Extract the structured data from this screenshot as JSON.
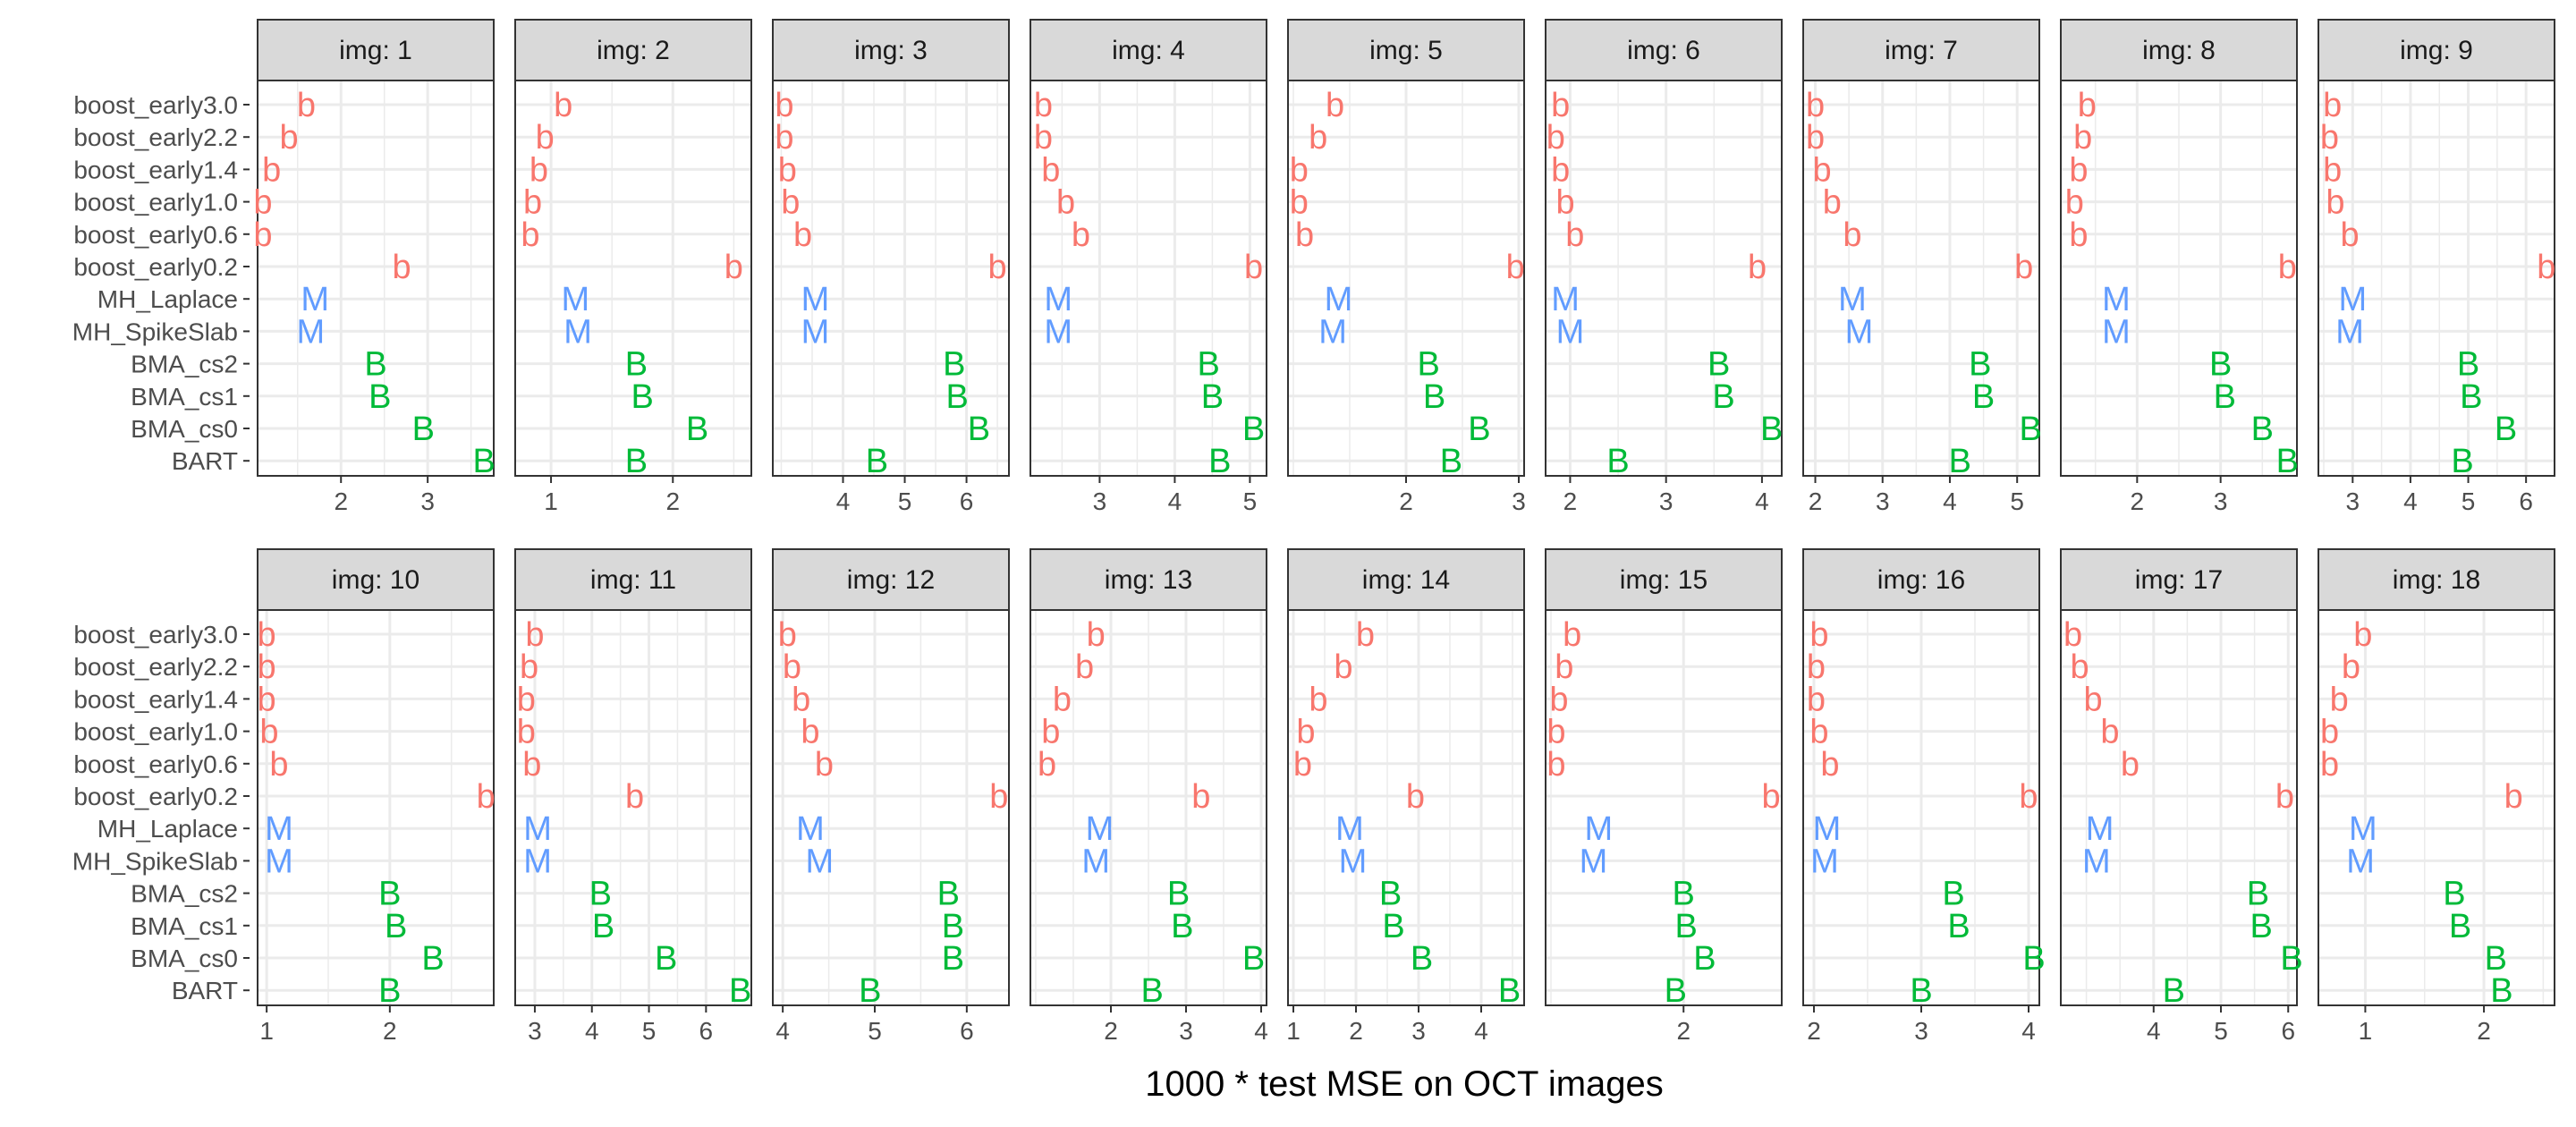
{
  "chart_data": {
    "type": "scatter",
    "layout": "facet_wrap 2 rows x 9 columns, free x scales",
    "xlabel": "1000 * test MSE on OCT images",
    "ylabel": "",
    "methods": [
      "boost_early3.0",
      "boost_early2.2",
      "boost_early1.4",
      "boost_early1.0",
      "boost_early0.6",
      "boost_early0.2",
      "MH_Laplace",
      "MH_SpikeSlab",
      "BMA_cs2",
      "BMA_cs1",
      "BMA_cs0",
      "BART"
    ],
    "method_symbols": [
      "b",
      "b",
      "b",
      "b",
      "b",
      "b",
      "M",
      "M",
      "B",
      "B",
      "B",
      "B"
    ],
    "symbol_colors": {
      "b": "#F8766D",
      "M": "#619CFF",
      "B": "#00BA38"
    },
    "panels": [
      {
        "label": "img: 1",
        "xlim": [
          1.1,
          3.7
        ],
        "ticks": [
          2,
          3
        ],
        "tick_labels": [
          "2",
          "3"
        ],
        "values": [
          1.6,
          1.4,
          1.2,
          1.1,
          1.1,
          2.7,
          1.7,
          1.65,
          2.4,
          2.45,
          2.95,
          3.65
        ]
      },
      {
        "label": "img: 2",
        "xlim": [
          0.75,
          2.6
        ],
        "ticks": [
          1,
          2
        ],
        "tick_labels": [
          "1",
          "2"
        ],
        "values": [
          1.1,
          0.95,
          0.9,
          0.85,
          0.83,
          2.5,
          1.2,
          1.22,
          1.7,
          1.75,
          2.2,
          1.7
        ]
      },
      {
        "label": "img: 3",
        "xlim": [
          2.95,
          6.6
        ],
        "ticks": [
          4,
          5,
          6
        ],
        "tick_labels": [
          "4",
          "5",
          "6"
        ],
        "values": [
          3.05,
          3.05,
          3.1,
          3.15,
          3.35,
          6.5,
          3.55,
          3.55,
          5.8,
          5.85,
          6.2,
          4.55
        ]
      },
      {
        "label": "img: 4",
        "xlim": [
          2.15,
          5.15
        ],
        "ticks": [
          3,
          4,
          5
        ],
        "tick_labels": [
          "3",
          "4",
          "5"
        ],
        "values": [
          2.25,
          2.25,
          2.35,
          2.55,
          2.75,
          5.05,
          2.45,
          2.45,
          4.45,
          4.5,
          5.05,
          4.6
        ]
      },
      {
        "label": "img: 5",
        "xlim": [
          1.0,
          3.0
        ],
        "ticks": [
          2,
          3
        ],
        "tick_labels": [
          "2",
          "3"
        ],
        "values": [
          1.37,
          1.22,
          1.05,
          1.05,
          1.1,
          2.97,
          1.4,
          1.35,
          2.2,
          2.25,
          2.65,
          2.4
        ]
      },
      {
        "label": "img: 6",
        "xlim": [
          1.8,
          4.15
        ],
        "ticks": [
          2,
          3,
          4
        ],
        "tick_labels": [
          "2",
          "3",
          "4"
        ],
        "values": [
          1.9,
          1.85,
          1.9,
          1.95,
          2.05,
          3.95,
          1.95,
          2.0,
          3.55,
          3.6,
          4.1,
          2.5
        ]
      },
      {
        "label": "img: 7",
        "xlim": [
          1.9,
          5.25
        ],
        "ticks": [
          2,
          3,
          4,
          5
        ],
        "tick_labels": [
          "2",
          "3",
          "4",
          "5"
        ],
        "values": [
          2.0,
          2.0,
          2.1,
          2.25,
          2.55,
          5.1,
          2.55,
          2.65,
          4.45,
          4.5,
          5.2,
          4.15
        ]
      },
      {
        "label": "img: 8",
        "xlim": [
          1.15,
          3.85
        ],
        "ticks": [
          2,
          3
        ],
        "tick_labels": [
          "2",
          "3"
        ],
        "values": [
          1.4,
          1.35,
          1.3,
          1.25,
          1.3,
          3.8,
          1.75,
          1.75,
          3.0,
          3.05,
          3.5,
          3.8
        ]
      },
      {
        "label": "img: 9",
        "xlim": [
          2.5,
          6.4
        ],
        "ticks": [
          3,
          4,
          5,
          6
        ],
        "tick_labels": [
          "3",
          "4",
          "5",
          "6"
        ],
        "values": [
          2.65,
          2.6,
          2.65,
          2.7,
          2.95,
          6.35,
          3.0,
          2.95,
          5.0,
          5.05,
          5.65,
          4.9
        ]
      },
      {
        "label": "img: 10",
        "xlim": [
          0.97,
          2.8
        ],
        "ticks": [
          1,
          2
        ],
        "tick_labels": [
          "1",
          "2"
        ],
        "values": [
          1.0,
          1.0,
          1.0,
          1.02,
          1.1,
          2.78,
          1.1,
          1.1,
          2.0,
          2.05,
          2.35,
          2.0
        ]
      },
      {
        "label": "img: 11",
        "xlim": [
          2.75,
          6.7
        ],
        "ticks": [
          3,
          4,
          5,
          6
        ],
        "tick_labels": [
          "3",
          "4",
          "5",
          "6"
        ],
        "values": [
          3.0,
          2.9,
          2.85,
          2.85,
          2.95,
          4.75,
          3.05,
          3.05,
          4.15,
          4.2,
          5.3,
          6.6
        ]
      },
      {
        "label": "img: 12",
        "xlim": [
          3.95,
          6.4
        ],
        "ticks": [
          4,
          5,
          6
        ],
        "tick_labels": [
          "4",
          "5",
          "6"
        ],
        "values": [
          4.05,
          4.1,
          4.2,
          4.3,
          4.45,
          6.35,
          4.3,
          4.4,
          5.8,
          5.85,
          5.85,
          4.95
        ]
      },
      {
        "label": "img: 13",
        "xlim": [
          1.0,
          4.0
        ],
        "ticks": [
          2,
          3,
          4
        ],
        "tick_labels": [
          "2",
          "3",
          "4"
        ],
        "values": [
          1.8,
          1.65,
          1.35,
          1.2,
          1.15,
          3.2,
          1.85,
          1.8,
          2.9,
          2.95,
          3.9,
          2.55
        ]
      },
      {
        "label": "img: 14",
        "xlim": [
          1.0,
          4.6
        ],
        "ticks": [
          1,
          2,
          3,
          4
        ],
        "tick_labels": [
          "1",
          "2",
          "3",
          "4"
        ],
        "values": [
          2.15,
          1.8,
          1.4,
          1.2,
          1.15,
          2.95,
          1.9,
          1.95,
          2.55,
          2.6,
          3.05,
          4.45
        ]
      },
      {
        "label": "img: 15",
        "xlim": [
          1.5,
          2.35
        ],
        "ticks": [
          2
        ],
        "tick_labels": [
          "2"
        ],
        "values": [
          1.58,
          1.55,
          1.53,
          1.52,
          1.52,
          2.33,
          1.68,
          1.66,
          2.0,
          2.01,
          2.08,
          1.97
        ]
      },
      {
        "label": "img: 16",
        "xlim": [
          1.95,
          4.05
        ],
        "ticks": [
          2,
          3,
          4
        ],
        "tick_labels": [
          "2",
          "3",
          "4"
        ],
        "values": [
          2.05,
          2.02,
          2.02,
          2.05,
          2.15,
          4.0,
          2.12,
          2.1,
          3.3,
          3.35,
          4.05,
          3.0
        ]
      },
      {
        "label": "img: 17",
        "xlim": [
          2.7,
          6.05
        ],
        "ticks": [
          4,
          5,
          6
        ],
        "tick_labels": [
          "4",
          "5",
          "6"
        ],
        "values": [
          2.8,
          2.9,
          3.1,
          3.35,
          3.65,
          5.95,
          3.2,
          3.15,
          5.55,
          5.6,
          6.05,
          4.3
        ]
      },
      {
        "label": "img: 18",
        "xlim": [
          0.65,
          2.55
        ],
        "ticks": [
          1,
          2
        ],
        "tick_labels": [
          "1",
          "2"
        ],
        "values": [
          0.98,
          0.88,
          0.78,
          0.7,
          0.7,
          2.25,
          0.98,
          0.96,
          1.75,
          1.8,
          2.1,
          2.15
        ]
      }
    ]
  }
}
